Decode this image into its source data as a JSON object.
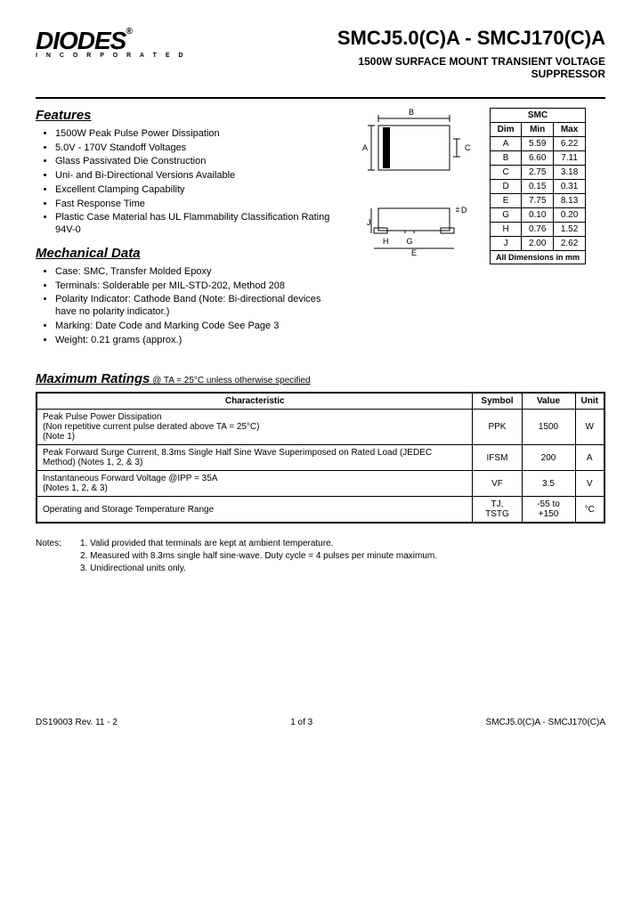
{
  "logo": {
    "main": "DIODES",
    "reg": "®",
    "sub": "I N C O R P O R A T E D"
  },
  "title": {
    "part": "SMCJ5.0(C)A - SMCJ170(C)A",
    "subtitle1": "1500W SURFACE MOUNT TRANSIENT VOLTAGE",
    "subtitle2": "SUPPRESSOR"
  },
  "features": {
    "heading": "Features",
    "items": [
      "1500W Peak Pulse Power Dissipation",
      "5.0V - 170V Standoff Voltages",
      "Glass Passivated Die Construction",
      "Uni- and Bi-Directional Versions Available",
      "Excellent Clamping Capability",
      "Fast Response Time",
      "Plastic Case Material has UL Flammability Classification Rating 94V-0"
    ]
  },
  "mechdata": {
    "heading": "Mechanical Data",
    "items": [
      "Case:  SMC, Transfer Molded Epoxy",
      "Terminals: Solderable per MIL-STD-202, Method 208",
      "Polarity Indicator: Cathode Band (Note: Bi-directional devices have no polarity indicator.)",
      "Marking: Date Code and Marking Code See Page 3",
      "Weight:  0.21 grams (approx.)"
    ]
  },
  "dims": {
    "header_top": "SMC",
    "cols": [
      "Dim",
      "Min",
      "Max"
    ],
    "rows": [
      [
        "A",
        "5.59",
        "6.22"
      ],
      [
        "B",
        "6.60",
        "7.11"
      ],
      [
        "C",
        "2.75",
        "3.18"
      ],
      [
        "D",
        "0.15",
        "0.31"
      ],
      [
        "E",
        "7.75",
        "8.13"
      ],
      [
        "G",
        "0.10",
        "0.20"
      ],
      [
        "H",
        "0.76",
        "1.52"
      ],
      [
        "J",
        "2.00",
        "2.62"
      ]
    ],
    "footer": "All Dimensions in mm"
  },
  "ratings": {
    "heading": "Maximum Ratings",
    "condition": " @ TA = 25°C unless otherwise specified",
    "cols": [
      "Characteristic",
      "Symbol",
      "Value",
      "Unit"
    ],
    "rows": [
      [
        "Peak Pulse Power Dissipation\n(Non repetitive current pulse derated above TA = 25°C)\n(Note 1)",
        "PPK",
        "1500",
        "W"
      ],
      [
        "Peak Forward Surge Current, 8.3ms Single Half Sine Wave Superimposed on Rated Load (JEDEC Method) (Notes 1, 2, & 3)",
        "IFSM",
        "200",
        "A"
      ],
      [
        "Instantaneous Forward Voltage @IPP = 35A\n(Notes 1, 2, & 3)",
        "VF",
        "3.5",
        "V"
      ],
      [
        "Operating and Storage Temperature Range",
        "TJ, TSTG",
        "-55 to +150",
        "°C"
      ]
    ]
  },
  "notes": {
    "label": "Notes:",
    "items": [
      "1. Valid provided that terminals are kept at ambient temperature.",
      "2. Measured with 8.3ms single half sine-wave.  Duty cycle = 4 pulses per minute maximum.",
      "3. Unidirectional units only."
    ]
  },
  "footer": {
    "left": "DS19003 Rev. 11 - 2",
    "center": "1 of 3",
    "right": "SMCJ5.0(C)A - SMCJ170(C)A"
  }
}
